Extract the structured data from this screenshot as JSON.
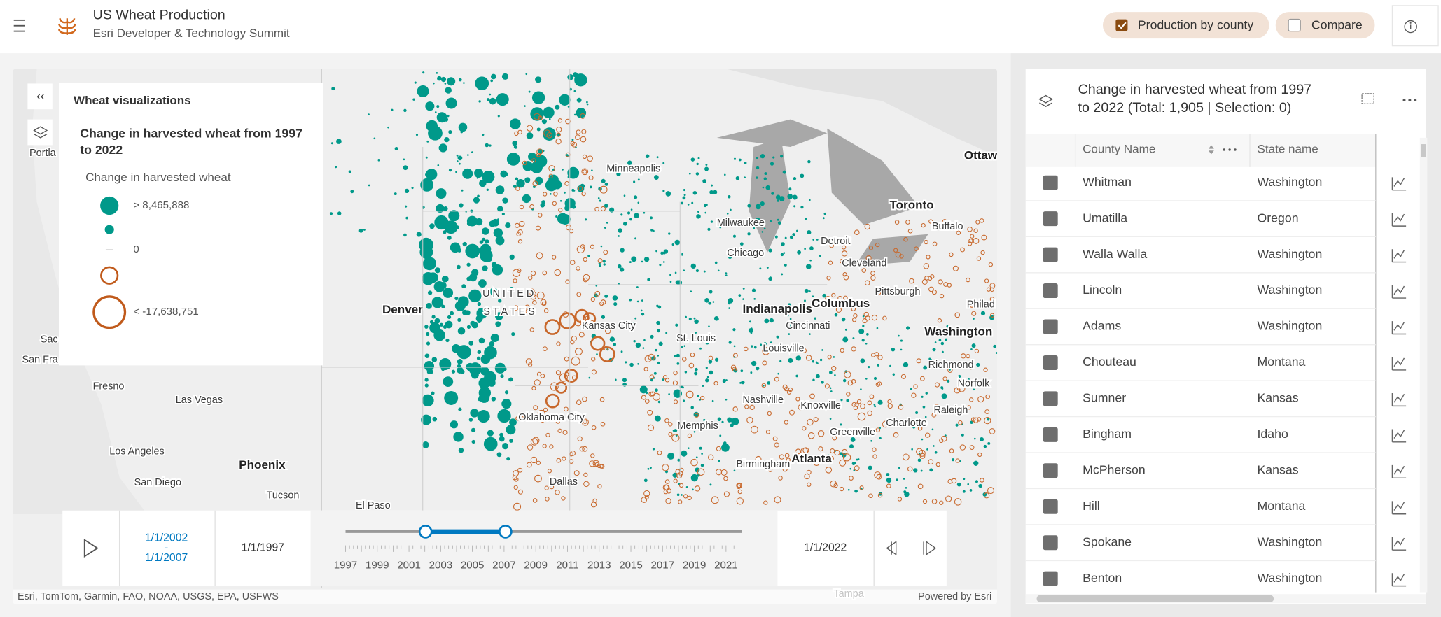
{
  "header": {
    "title": "US Wheat Production",
    "subtitle": "Esri Developer & Technology Summit",
    "toggles": [
      "Production by county",
      "Compare"
    ]
  },
  "legend": {
    "panel_title": "Wheat visualizations",
    "heading": [
      "Change in harvested wheat from 1997",
      "to 2022"
    ],
    "field": "Change in harvested wheat",
    "labels": [
      "> 8,465,888",
      "0",
      "< -17,638,751"
    ]
  },
  "map": {
    "labels": [
      "Portla",
      "Sac",
      "San Fra",
      "Fresno",
      "Las Vegas",
      "Los Angeles",
      "San Diego",
      "Phoenix",
      "Tucson",
      "El Paso",
      "Denver",
      "U N I T E D",
      "S T A T E S",
      "Minneapolis",
      "Milwaukee",
      "Chicago",
      "Detroit",
      "Toronto",
      "Buffalo",
      "Ottaw",
      "Cleveland",
      "Pittsburgh",
      "Philad",
      "Columbus",
      "Indianapolis",
      "Cincinnati",
      "Kansas City",
      "St. Louis",
      "Louisville",
      "Washington",
      "Richmond",
      "Norfolk",
      "Raleigh",
      "Charlotte",
      "Greenville",
      "Knoxville",
      "Nashville",
      "Memphis",
      "Atlanta",
      "Birmingham",
      "Oklahoma City",
      "Dallas",
      "Tampa"
    ],
    "attribution": "Esri, TomTom, Garmin, FAO, NOAA, USGS, EPA, USFWS",
    "powered_by": "Powered by Esri"
  },
  "time_slider": {
    "range_start": "1/1/2002",
    "range_separator": "-",
    "range_end": "1/1/2007",
    "min": "1/1/1997",
    "max": "1/1/2022",
    "years": [
      1997,
      1999,
      2001,
      2003,
      2005,
      2007,
      2009,
      2011,
      2013,
      2015,
      2017,
      2019,
      2021
    ]
  },
  "table": {
    "title": [
      "Change in harvested wheat from 1997",
      "to 2022 (Total: 1,905 | Selection: 0)"
    ],
    "columns": [
      "County Name",
      "State name"
    ],
    "rows": [
      [
        "Whitman",
        "Washington"
      ],
      [
        "Umatilla",
        "Oregon"
      ],
      [
        "Walla Walla",
        "Washington"
      ],
      [
        "Lincoln",
        "Washington"
      ],
      [
        "Adams",
        "Washington"
      ],
      [
        "Chouteau",
        "Montana"
      ],
      [
        "Sumner",
        "Kansas"
      ],
      [
        "Bingham",
        "Idaho"
      ],
      [
        "McPherson",
        "Kansas"
      ],
      [
        "Hill",
        "Montana"
      ],
      [
        "Spokane",
        "Washington"
      ],
      [
        "Benton",
        "Washington"
      ]
    ]
  }
}
